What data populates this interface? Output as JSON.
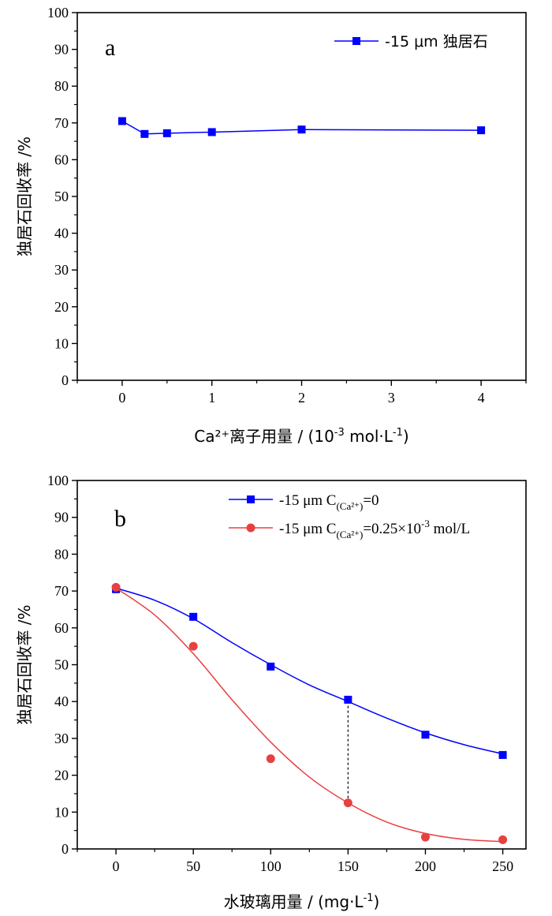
{
  "chart_data": [
    {
      "type": "line",
      "panel_label": "a",
      "x_ticks": [
        "0",
        "1",
        "2",
        "3",
        "4"
      ],
      "xlim": [
        -0.5,
        4.5
      ],
      "ylim": [
        0,
        100
      ],
      "y_ticks": [
        "0",
        "10",
        "20",
        "30",
        "40",
        "50",
        "60",
        "70",
        "80",
        "90",
        "100"
      ],
      "ylabel": "独居石回收率 /%",
      "xlabel": {
        "main": "Ca²⁺离子用量 / (10",
        "sup": "-3",
        "tail": " mol·L",
        "sup2": "-1",
        "end": ")"
      },
      "legend_position": "top-right",
      "series": [
        {
          "name": "-15 μm 独居石",
          "color": "#0000ff",
          "marker": "square",
          "x": [
            0,
            0.25,
            0.5,
            1,
            2,
            4
          ],
          "y": [
            70.5,
            67.0,
            67.2,
            67.5,
            68.2,
            68.0
          ]
        }
      ]
    },
    {
      "type": "line",
      "panel_label": "b",
      "x_ticks": [
        "0",
        "50",
        "100",
        "150",
        "200",
        "250"
      ],
      "xlim": [
        -25,
        265
      ],
      "ylim": [
        0,
        100
      ],
      "y_ticks": [
        "0",
        "10",
        "20",
        "30",
        "40",
        "50",
        "60",
        "70",
        "80",
        "90",
        "100"
      ],
      "ylabel": "独居石回收率 /%",
      "xlabel": {
        "main": "水玻璃用量 / (mg·L",
        "sup": "-1",
        "end": ")"
      },
      "legend_position": "top-right",
      "series": [
        {
          "name": "-15 μm C(Ca²⁺)=0",
          "legend_parts": {
            "pre": "-15 μm C",
            "sub": "(Ca²⁺)",
            "post": "=0"
          },
          "color": "#0000ff",
          "marker": "square",
          "x": [
            0,
            50,
            100,
            150,
            200,
            250
          ],
          "y": [
            70.5,
            63.0,
            49.5,
            40.5,
            31.0,
            25.5
          ],
          "fit": [
            [
              0,
              70.8
            ],
            [
              25,
              67.5
            ],
            [
              50,
              62.5
            ],
            [
              75,
              56.0
            ],
            [
              100,
              50.0
            ],
            [
              125,
              44.5
            ],
            [
              150,
              40.0
            ],
            [
              175,
              35.5
            ],
            [
              200,
              31.5
            ],
            [
              225,
              28.3
            ],
            [
              250,
              25.8
            ]
          ]
        },
        {
          "name": "-15 μm C(Ca²⁺)=0.25×10⁻³ mol/L",
          "legend_parts": {
            "pre": "-15 μm C",
            "sub": "(Ca²⁺)",
            "post": "=0.25×10",
            "sup": "-3",
            "tail": " mol/L"
          },
          "color": "#e84040",
          "marker": "circle",
          "x": [
            0,
            50,
            100,
            150,
            200,
            250
          ],
          "y": [
            71.0,
            55.0,
            24.5,
            12.5,
            3.2,
            2.5
          ],
          "fit": [
            [
              0,
              70.8
            ],
            [
              25,
              63.5
            ],
            [
              50,
              53.0
            ],
            [
              75,
              40.5
            ],
            [
              100,
              29.0
            ],
            [
              125,
              19.5
            ],
            [
              150,
              12.5
            ],
            [
              175,
              7.3
            ],
            [
              200,
              4.2
            ],
            [
              225,
              2.6
            ],
            [
              250,
              2.0
            ]
          ]
        }
      ],
      "annotations": [
        {
          "type": "dotted-vertical-line",
          "x": 150,
          "y_from": 12.5,
          "y_to": 40.5
        }
      ]
    }
  ]
}
